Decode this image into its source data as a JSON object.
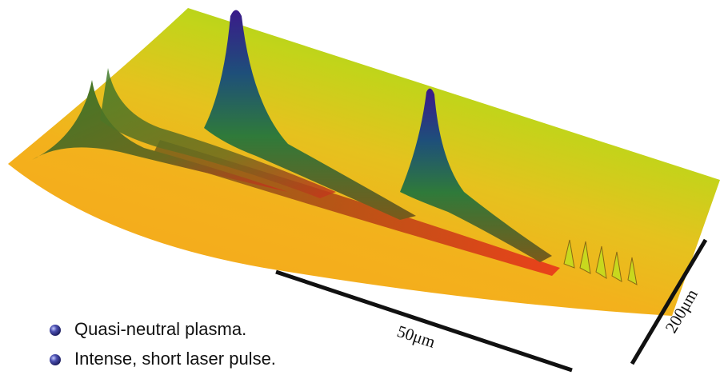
{
  "bullets": [
    "Quasi-neutral plasma.",
    "Intense, short laser pulse."
  ],
  "scale_bars": {
    "length": "50μm",
    "width": "200μm"
  }
}
